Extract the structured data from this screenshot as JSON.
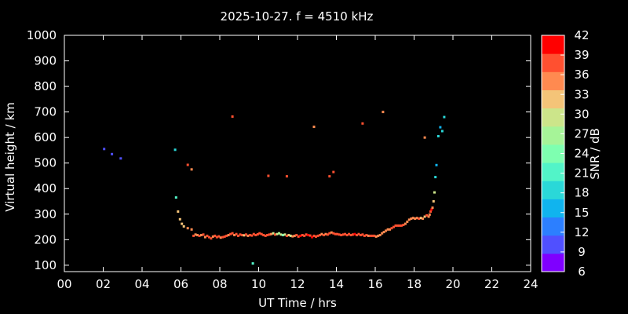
{
  "chart_data": {
    "type": "scatter",
    "title": "2025-10-27. f = 4510 kHz",
    "xlabel": "UT Time / hrs",
    "ylabel": "Virtual height / km",
    "colorbar_label": "SNR / dB",
    "xlim": [
      0,
      24
    ],
    "ylim": [
      75,
      1000
    ],
    "x_ticks": [
      "00",
      "02",
      "04",
      "06",
      "08",
      "10",
      "12",
      "14",
      "16",
      "18",
      "20",
      "22",
      "24"
    ],
    "y_ticks": [
      "100",
      "200",
      "300",
      "400",
      "500",
      "600",
      "700",
      "800",
      "900",
      "1000"
    ],
    "colorbar_ticks": [
      "6",
      "9",
      "12",
      "15",
      "18",
      "21",
      "24",
      "27",
      "30",
      "33",
      "36",
      "39",
      "42"
    ],
    "colorbar_colors": [
      "#7f00ff",
      "#5050ff",
      "#2c7fff",
      "#10b4ee",
      "#2ad8d8",
      "#52f4c8",
      "#7effb0",
      "#a6f498",
      "#cce58a",
      "#f4c478",
      "#ff8a50",
      "#ff5030",
      "#ff0000"
    ],
    "grid": false,
    "x": [
      2.05,
      2.45,
      2.9,
      5.7,
      5.75,
      5.85,
      5.95,
      6.05,
      6.15,
      6.35,
      6.55,
      6.65,
      6.75,
      6.85,
      6.95,
      7.05,
      7.15,
      7.25,
      7.35,
      7.45,
      7.55,
      7.65,
      7.75,
      7.85,
      7.95,
      8.05,
      8.15,
      8.25,
      8.35,
      8.45,
      8.55,
      8.65,
      8.75,
      8.85,
      8.95,
      9.05,
      9.15,
      9.25,
      9.35,
      9.45,
      9.55,
      9.65,
      9.75,
      9.85,
      9.95,
      10.05,
      10.15,
      10.25,
      10.35,
      10.45,
      10.55,
      10.65,
      10.75,
      10.85,
      10.95,
      11.05,
      11.15,
      11.25,
      11.35,
      11.45,
      11.55,
      11.65,
      11.75,
      11.85,
      11.95,
      12.05,
      12.15,
      12.25,
      12.35,
      12.45,
      12.55,
      12.65,
      12.75,
      12.85,
      12.95,
      13.05,
      13.15,
      13.25,
      13.35,
      13.45,
      13.55,
      13.65,
      13.75,
      13.85,
      13.95,
      14.05,
      14.15,
      14.25,
      14.35,
      14.45,
      14.55,
      14.65,
      14.75,
      14.85,
      14.95,
      15.05,
      15.15,
      15.25,
      15.35,
      15.45,
      15.55,
      15.65,
      15.75,
      15.85,
      15.95,
      16.05,
      16.15,
      16.25,
      16.35,
      16.45,
      16.55,
      16.65,
      16.75,
      16.85,
      16.95,
      17.05,
      17.15,
      17.25,
      17.35,
      17.45,
      17.55,
      17.65,
      17.75,
      17.85,
      17.95,
      18.05,
      18.15,
      18.25,
      18.35,
      18.45,
      18.55,
      18.65,
      18.75,
      18.8,
      18.85,
      18.9,
      18.95,
      19.0,
      19.05,
      19.1,
      19.15,
      19.25,
      19.35,
      19.45,
      19.55,
      8.65,
      6.35,
      6.55,
      9.7,
      10.5,
      11.45,
      12.85,
      13.65,
      13.85,
      15.35,
      16.4,
      18.55
    ],
    "y": [
      555,
      535,
      518,
      552,
      365,
      310,
      280,
      262,
      252,
      245,
      240,
      215,
      220,
      218,
      215,
      218,
      220,
      210,
      215,
      210,
      205,
      212,
      215,
      210,
      213,
      208,
      210,
      212,
      215,
      218,
      222,
      225,
      218,
      222,
      215,
      220,
      218,
      217,
      220,
      215,
      218,
      216,
      222,
      218,
      221,
      225,
      222,
      218,
      215,
      218,
      220,
      222,
      225,
      220,
      222,
      225,
      220,
      218,
      220,
      215,
      218,
      215,
      213,
      215,
      218,
      212,
      215,
      218,
      215,
      220,
      218,
      216,
      210,
      215,
      212,
      215,
      218,
      222,
      218,
      222,
      220,
      225,
      228,
      225,
      222,
      222,
      220,
      218,
      220,
      222,
      218,
      222,
      218,
      220,
      222,
      218,
      222,
      218,
      220,
      215,
      218,
      215,
      215,
      215,
      215,
      212,
      215,
      218,
      225,
      230,
      235,
      240,
      240,
      245,
      250,
      255,
      255,
      255,
      255,
      258,
      262,
      270,
      278,
      282,
      285,
      282,
      285,
      282,
      285,
      282,
      290,
      295,
      290,
      298,
      310,
      318,
      325,
      350,
      385,
      445,
      492,
      605,
      640,
      625,
      680,
      682,
      493,
      475,
      107,
      450,
      448,
      642,
      448,
      465,
      655,
      700,
      600
    ],
    "snr": [
      9,
      9,
      9,
      18,
      21,
      33,
      33,
      33,
      33,
      36,
      36,
      39,
      36,
      36,
      39,
      36,
      39,
      36,
      39,
      39,
      39,
      36,
      39,
      39,
      39,
      36,
      39,
      39,
      39,
      36,
      39,
      39,
      36,
      39,
      39,
      39,
      39,
      33,
      39,
      36,
      39,
      39,
      39,
      39,
      39,
      39,
      39,
      39,
      39,
      39,
      39,
      36,
      30,
      39,
      30,
      27,
      30,
      24,
      30,
      39,
      33,
      30,
      36,
      36,
      39,
      39,
      42,
      39,
      39,
      39,
      42,
      39,
      42,
      39,
      39,
      39,
      39,
      36,
      39,
      36,
      39,
      39,
      36,
      39,
      39,
      39,
      39,
      39,
      39,
      39,
      39,
      39,
      39,
      39,
      42,
      39,
      39,
      39,
      39,
      39,
      39,
      36,
      39,
      39,
      39,
      36,
      36,
      36,
      36,
      36,
      36,
      36,
      36,
      39,
      39,
      39,
      39,
      39,
      39,
      39,
      36,
      36,
      36,
      36,
      36,
      36,
      36,
      39,
      33,
      36,
      33,
      39,
      36,
      36,
      39,
      42,
      36,
      33,
      30,
      18,
      15,
      18,
      15,
      18,
      18,
      39,
      39,
      36,
      21,
      39,
      39,
      36,
      39,
      39,
      39,
      36,
      36
    ]
  }
}
